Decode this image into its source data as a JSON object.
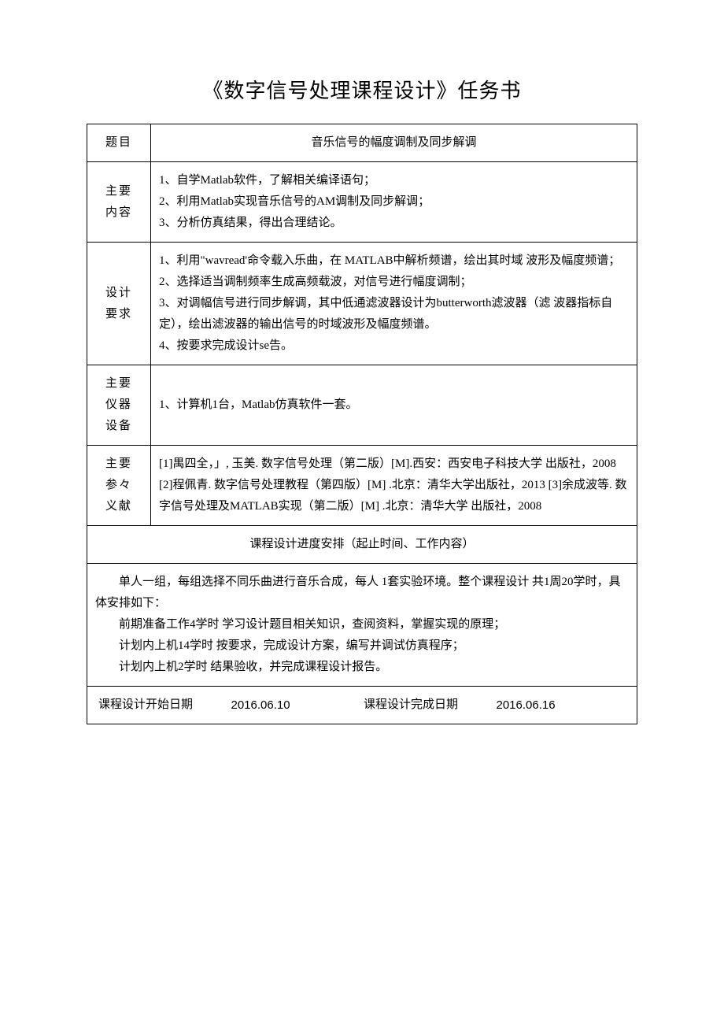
{
  "title": "《数字信号处理课程设计》任务书",
  "rows": {
    "topic": {
      "label": "题目",
      "content": "音乐信号的幅度调制及同步解调"
    },
    "main_content": {
      "label": "主要\n内容",
      "lines": [
        "1、自学Matlab软件，了解相关编译语句；",
        "2、利用Matlab实现音乐信号的AM调制及同步解调；",
        "3、分析仿真结果，得出合理结论。"
      ]
    },
    "requirements": {
      "label": "设计\n要求",
      "lines": [
        "1、利用\"wavread'命令载入乐曲，在 MATLAB中解析频谱，绘出其时域 波形及幅度频谱；",
        "2、选择适当调制频率生成高频载波，对信号进行幅度调制；",
        "3、对调幅信号进行同步解调，其中低通滤波器设计为butterworth滤波器（滤 波器指标自定），绘出滤波器的输出信号的时域波形及幅度频谱。",
        "4、按要求完成设计se告。"
      ]
    },
    "equipment": {
      "label": "主要\n仪器\n设备",
      "content": "1、计算机1台，Matlab仿真软件一套。"
    },
    "references": {
      "label": "主要\n参々\n义献",
      "lines": [
        "[1]禺四全，」, 玉美. 数字信号处理（第二版）[M].西安：西安电子科技大学 出版社，2008",
        "[2]程佩青. 数字信号处理教程（第四版）[M] .北京：清华大学出版社，2013 [3]余成波等. 数字信号处理及MATLAB实现（第二版）[M] .北京：清华大学 出版社，2008"
      ]
    }
  },
  "schedule": {
    "header": "课程设计进度安排（起止时间、工作内容）",
    "paragraphs": [
      "单人一组，每组选择不同乐曲进行音乐合成，每人 1套实验环境。整个课程设计 共1周20学时，具体安排如下：",
      "前期准备工作4学时 学习设计题目相关知识，查阅资料，掌握实现的原理；",
      "计划内上机14学时 按要求，完成设计方案，编写并调试仿真程序；",
      "计划内上机2学时 结果验收，并完成课程设计报告。"
    ]
  },
  "dates": {
    "start_label": "课程设计开始日期",
    "start_value": "2016.06.10",
    "end_label": "课程设计完成日期",
    "end_value": "2016.06.16"
  }
}
